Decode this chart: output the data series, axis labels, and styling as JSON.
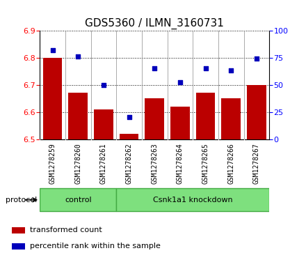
{
  "title": "GDS5360 / ILMN_3160731",
  "samples": [
    "GSM1278259",
    "GSM1278260",
    "GSM1278261",
    "GSM1278262",
    "GSM1278263",
    "GSM1278264",
    "GSM1278265",
    "GSM1278266",
    "GSM1278267"
  ],
  "transformed_counts": [
    6.8,
    6.67,
    6.61,
    6.52,
    6.65,
    6.62,
    6.67,
    6.65,
    6.7
  ],
  "percentile_ranks": [
    82,
    76,
    50,
    20,
    65,
    52,
    65,
    63,
    74
  ],
  "ylim_left": [
    6.5,
    6.9
  ],
  "ylim_right": [
    0,
    100
  ],
  "yticks_left": [
    6.5,
    6.6,
    6.7,
    6.8,
    6.9
  ],
  "yticks_right": [
    0,
    25,
    50,
    75,
    100
  ],
  "bar_color": "#BB0000",
  "dot_color": "#0000BB",
  "bar_bottom": 6.5,
  "protocol_label": "protocol",
  "control_label": "control",
  "knockdown_label": "Csnk1a1 knockdown",
  "control_count": 3,
  "knockdown_count": 6,
  "group_color": "#7EE07E",
  "group_edge_color": "#44AA44",
  "sample_bg_color": "#D8D8D8",
  "legend_items": [
    {
      "label": "transformed count",
      "color": "#BB0000"
    },
    {
      "label": "percentile rank within the sample",
      "color": "#0000BB"
    }
  ],
  "title_fontsize": 11,
  "tick_fontsize": 8,
  "sample_fontsize": 7
}
